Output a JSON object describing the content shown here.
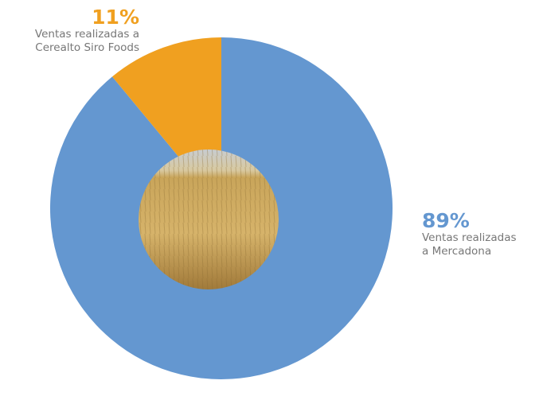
{
  "chart_data": {
    "type": "donut",
    "categories": [
      [
        "Ventas realizadas",
        "a Mercadona"
      ],
      [
        "Ventas realizadas a",
        "Cerealto Siro Foods"
      ]
    ],
    "values": [
      89,
      11
    ],
    "value_labels": [
      "89%",
      "11%"
    ],
    "colors": [
      "#6497d0",
      "#f0a020"
    ]
  }
}
